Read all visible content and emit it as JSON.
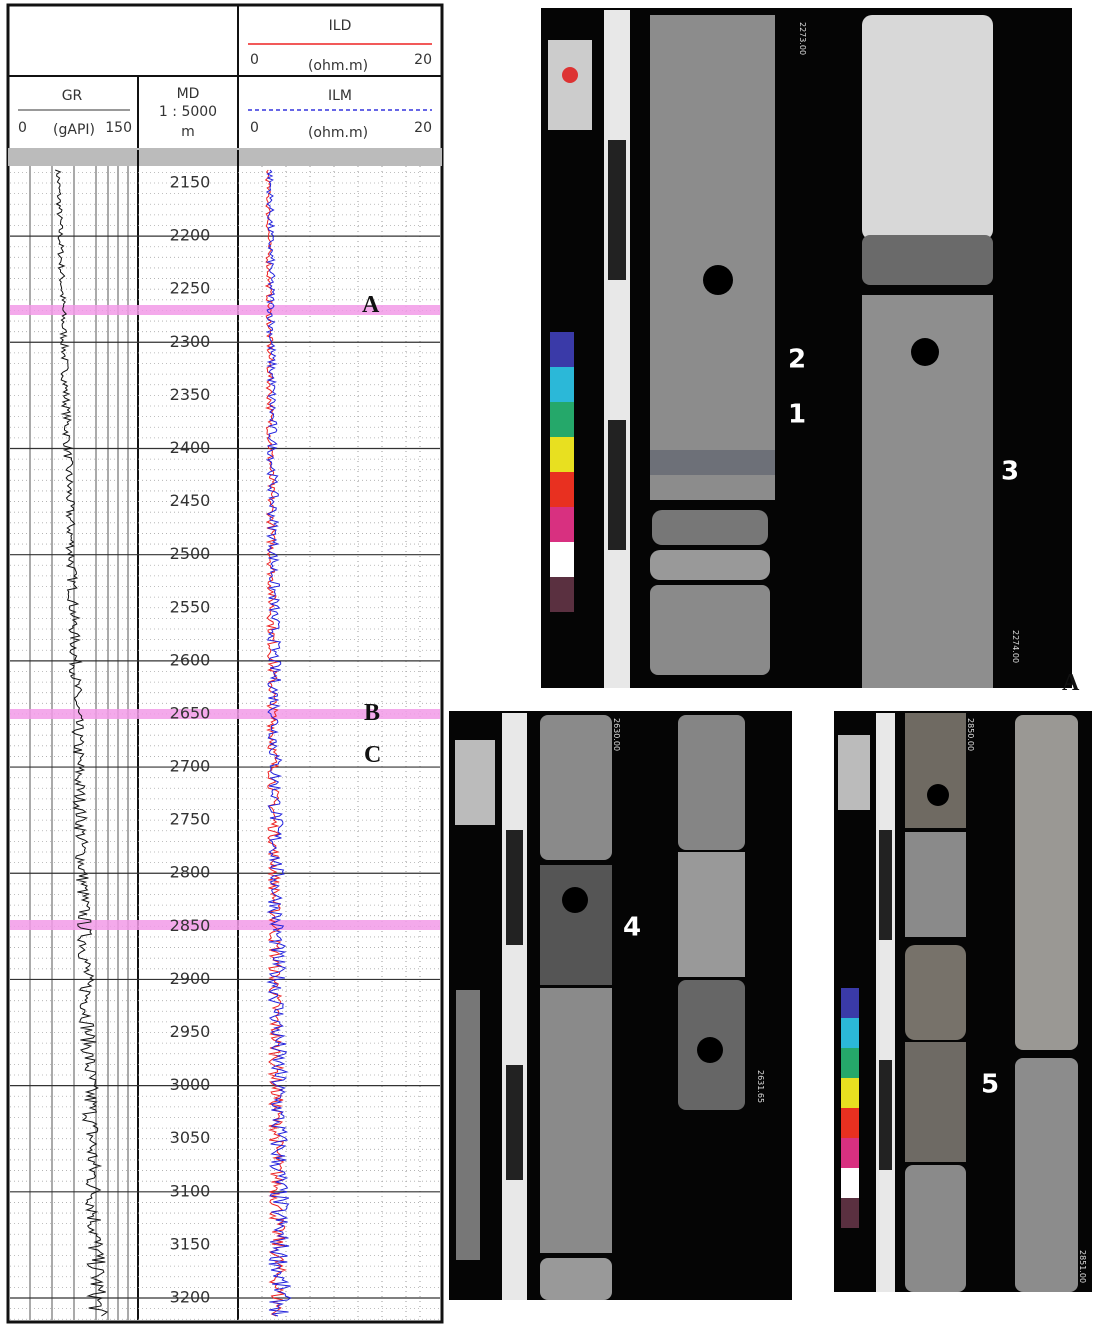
{
  "log": {
    "gr": {
      "title": "GR",
      "min": "0",
      "unit": "(gAPI)",
      "max": "150"
    },
    "md": {
      "title": "MD",
      "scale": "1 : 5000",
      "unit": "m"
    },
    "ild": {
      "title": "ILD",
      "min": "0",
      "unit": "(ohm.m)",
      "max": "20"
    },
    "ilm": {
      "title": "ILM",
      "min": "0",
      "unit": "(ohm.m)",
      "max": "20"
    },
    "depths": [
      2150,
      2200,
      2250,
      2300,
      2350,
      2400,
      2450,
      2500,
      2550,
      2600,
      2650,
      2700,
      2750,
      2800,
      2850,
      2900,
      2950,
      3000,
      3050,
      3100,
      3150,
      3200
    ],
    "markers": [
      "A",
      "B",
      "C"
    ]
  },
  "photos": {
    "label": "A",
    "numbers": [
      "1",
      "2",
      "3",
      "4",
      "5"
    ],
    "depth_labels": [
      "2273.00",
      "2274.00",
      "2630.00",
      "2631.65",
      "2850.00",
      "2851.00"
    ]
  }
}
